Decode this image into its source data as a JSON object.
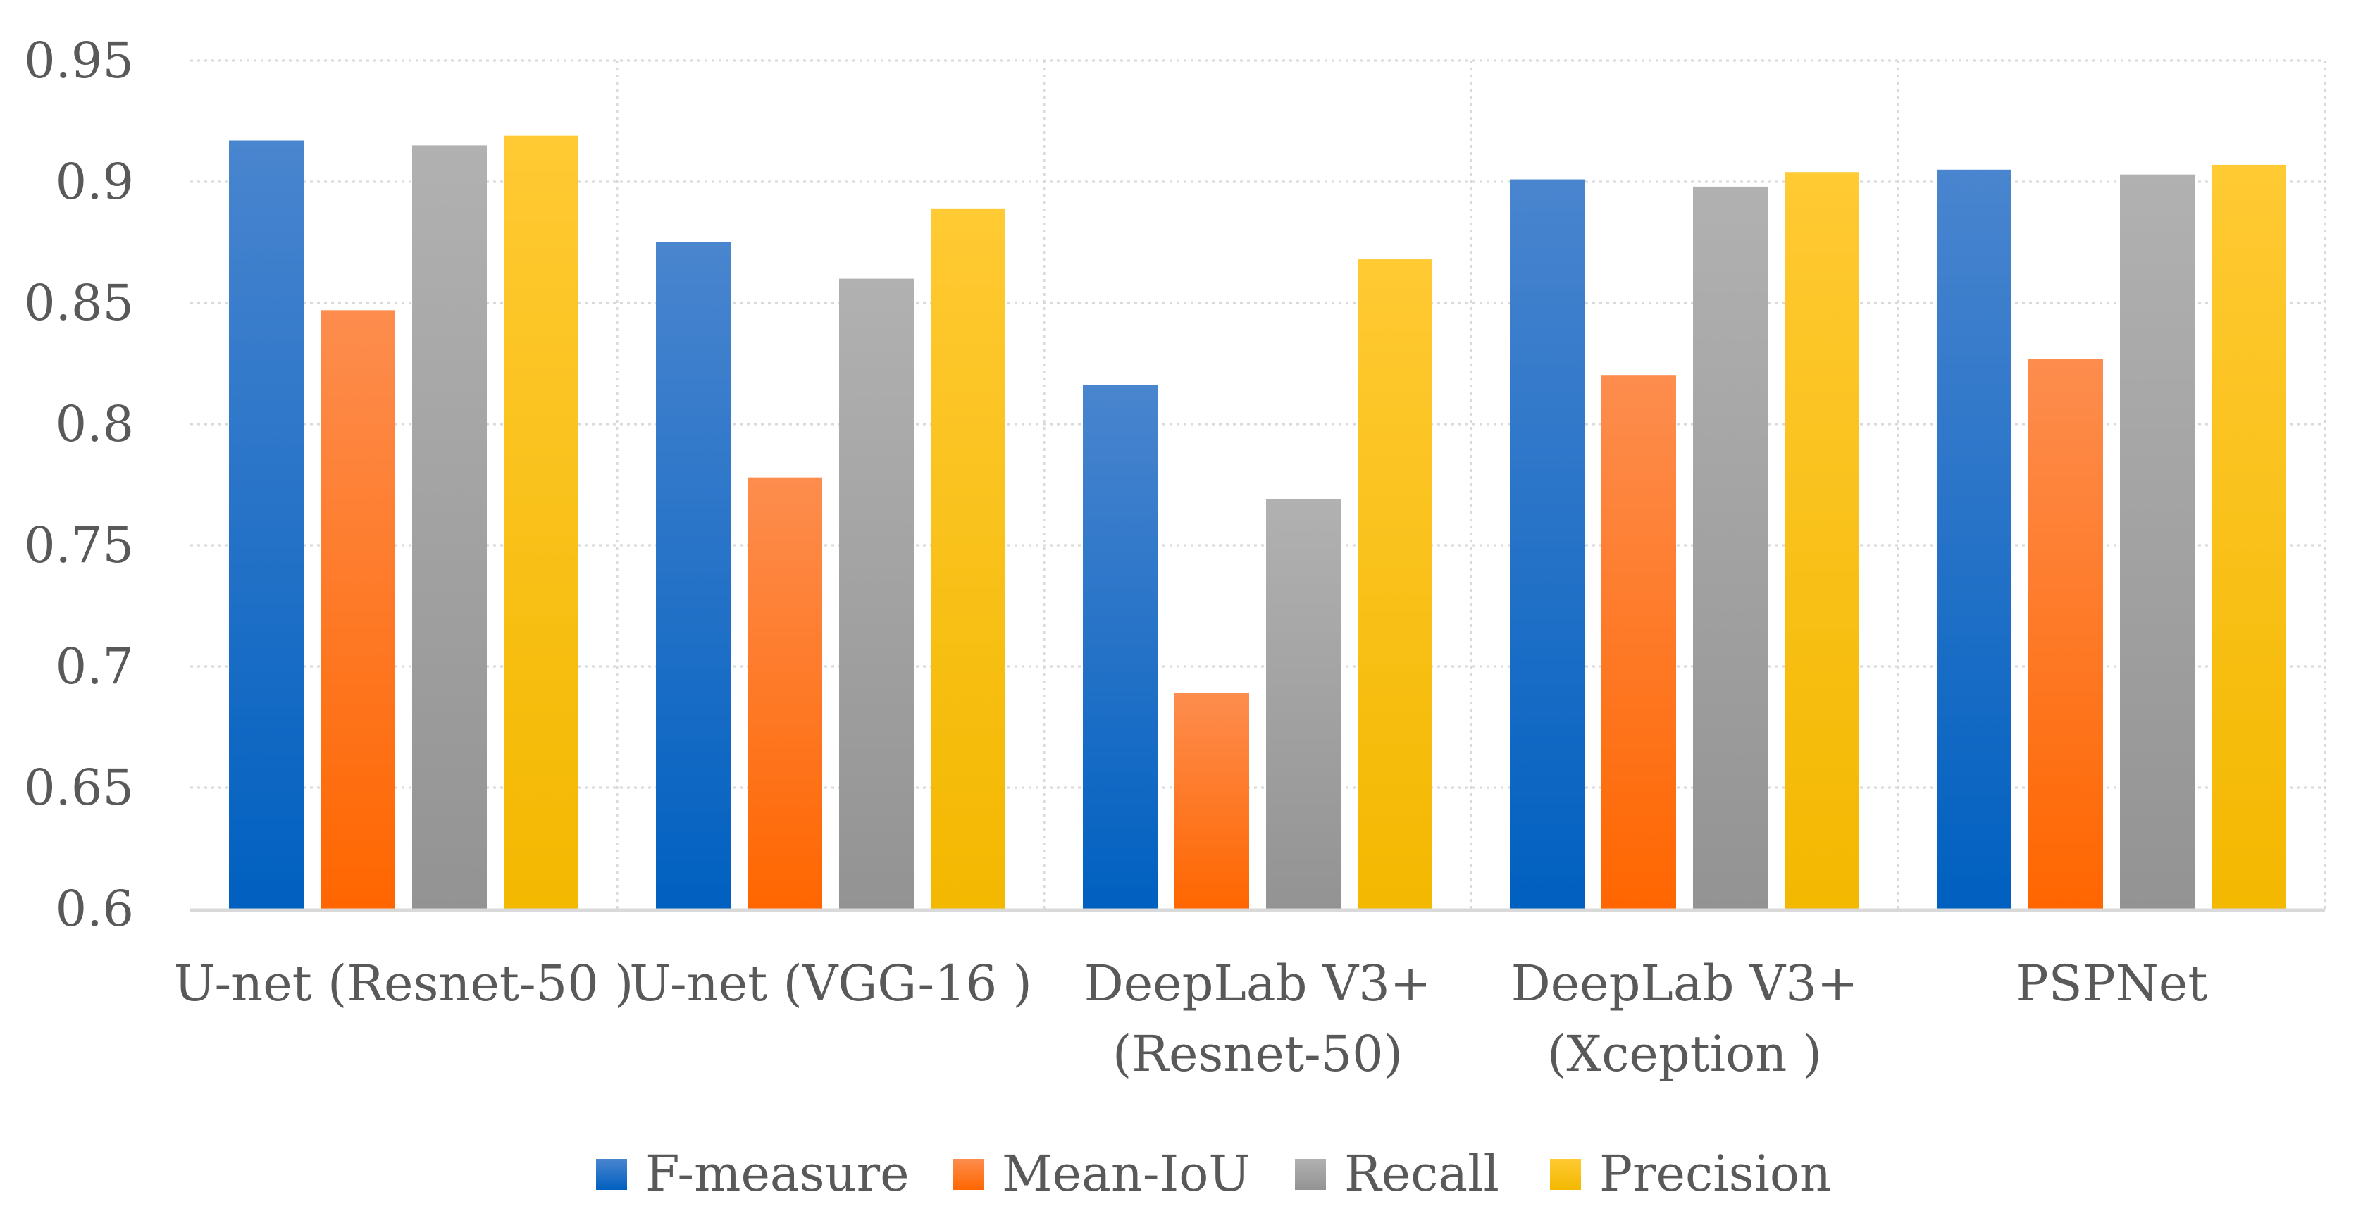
{
  "chart_data": {
    "type": "bar",
    "title": "",
    "xlabel": "",
    "ylabel": "",
    "ylim": [
      0.6,
      0.95
    ],
    "yticks": [
      "0.6",
      "0.65",
      "0.7",
      "0.75",
      "0.8",
      "0.85",
      "0.9",
      "0.95"
    ],
    "ytick_values": [
      0.6,
      0.65,
      0.7,
      0.75,
      0.8,
      0.85,
      0.9,
      0.95
    ],
    "grid": true,
    "legend_position": "bottom",
    "categories": [
      [
        "U-net (Resnet-50 )"
      ],
      [
        "U-net (VGG-16 )"
      ],
      [
        "DeepLab V3+",
        "(Resnet-50)"
      ],
      [
        "DeepLab V3+",
        "(Xception )"
      ],
      [
        "PSPNet"
      ]
    ],
    "series": [
      {
        "name": "F-measure",
        "color_top": "#4a85cf",
        "color_bottom": "#0060c0",
        "values": [
          0.917,
          0.875,
          0.816,
          0.901,
          0.905
        ]
      },
      {
        "name": "Mean-IoU",
        "color_top": "#fd8d4e",
        "color_bottom": "#ff6600",
        "values": [
          0.847,
          0.778,
          0.689,
          0.82,
          0.827
        ]
      },
      {
        "name": "Recall",
        "color_top": "#b1b1b1",
        "color_bottom": "#939393",
        "values": [
          0.915,
          0.86,
          0.769,
          0.898,
          0.903
        ]
      },
      {
        "name": "Precision",
        "color_top": "#ffca33",
        "color_bottom": "#f3b800",
        "values": [
          0.919,
          0.889,
          0.868,
          0.904,
          0.907
        ]
      }
    ]
  }
}
